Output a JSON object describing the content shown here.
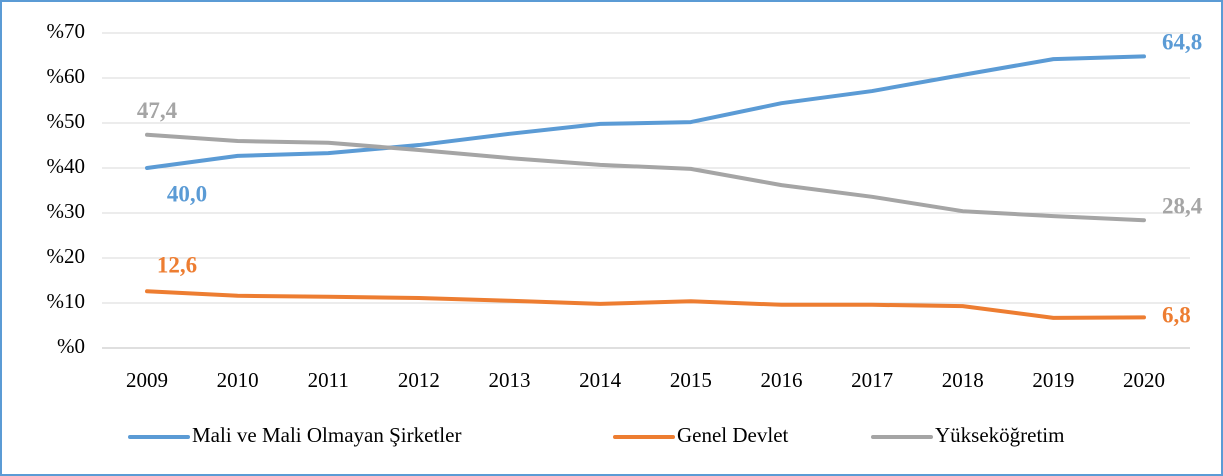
{
  "chart_data": {
    "type": "line",
    "categories": [
      "2009",
      "2010",
      "2011",
      "2012",
      "2013",
      "2014",
      "2015",
      "2016",
      "2017",
      "2018",
      "2019",
      "2020"
    ],
    "series": [
      {
        "name": "Mali ve Mali Olmayan Şirketler",
        "color": "#5b9bd5",
        "values": [
          40.0,
          42.7,
          43.3,
          45.1,
          47.6,
          49.8,
          50.2,
          54.4,
          57.1,
          60.7,
          64.2,
          64.8
        ],
        "value_labels": [
          "40,0",
          null,
          null,
          null,
          null,
          null,
          null,
          null,
          null,
          null,
          null,
          "64,8"
        ]
      },
      {
        "name": "Genel Devlet",
        "color": "#ed7d31",
        "values": [
          12.6,
          11.6,
          11.4,
          11.1,
          10.5,
          9.8,
          10.4,
          9.6,
          9.6,
          9.3,
          6.7,
          6.8
        ],
        "value_labels": [
          "12,6",
          null,
          null,
          null,
          null,
          null,
          null,
          null,
          null,
          null,
          null,
          "6,8"
        ]
      },
      {
        "name": "Yükseköğretim",
        "color": "#a5a5a5",
        "values": [
          47.4,
          46.0,
          45.6,
          44.0,
          42.2,
          40.7,
          39.8,
          36.2,
          33.6,
          30.4,
          29.3,
          28.4
        ],
        "value_labels": [
          "47,4",
          null,
          null,
          null,
          null,
          null,
          null,
          null,
          null,
          null,
          null,
          "28,4"
        ]
      }
    ],
    "ylim": [
      0,
      70
    ],
    "yticks": [
      {
        "value": 0,
        "label": "%0"
      },
      {
        "value": 10,
        "label": "%10"
      },
      {
        "value": 20,
        "label": "%20"
      },
      {
        "value": 30,
        "label": "%30"
      },
      {
        "value": 40,
        "label": "%40"
      },
      {
        "value": 50,
        "label": "%50"
      },
      {
        "value": 60,
        "label": "%60"
      },
      {
        "value": 70,
        "label": "%70"
      }
    ],
    "grid": true,
    "legend": "bottom"
  }
}
